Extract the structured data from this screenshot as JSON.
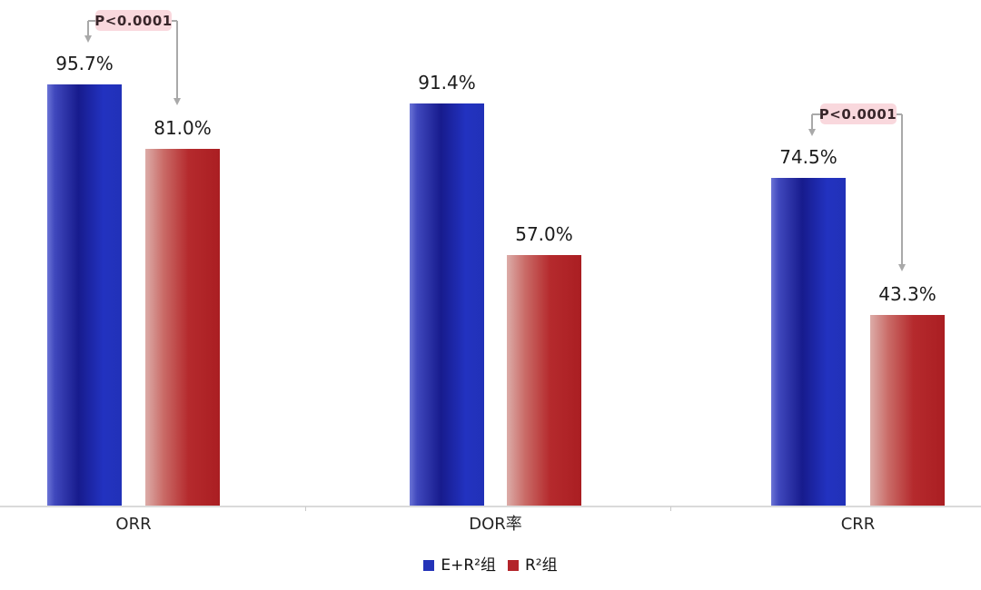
{
  "chart_data": {
    "type": "bar",
    "categories": [
      "ORR",
      "DOR率",
      "CRR"
    ],
    "series": [
      {
        "name": "E+R²组",
        "key": "e-plus-r2-group",
        "color_main": "#1f2db0",
        "color_light_edge": "#6b74d6",
        "values": [
          95.7,
          91.4,
          74.5
        ]
      },
      {
        "name": "R²组",
        "key": "r2-group",
        "color_main": "#b02226",
        "color_light_edge": "#dcaca8",
        "values": [
          81.0,
          57.0,
          43.3
        ]
      }
    ],
    "value_label_format": "percent_one_decimal",
    "value_labels": [
      [
        "95.7%",
        "91.4%",
        "74.5%"
      ],
      [
        "81.0%",
        "57.0%",
        "43.3%"
      ]
    ],
    "annotations": [
      {
        "category_index": 0,
        "category": "ORR",
        "label": "P<0.0001"
      },
      {
        "category_index": 2,
        "category": "CRR",
        "label": "P<0.0001"
      }
    ],
    "title": "",
    "xlabel": "",
    "ylabel": "",
    "ylim": [
      0,
      100
    ],
    "grid": false,
    "y_axis_visible": false,
    "legend_position": "bottom"
  },
  "legend": {
    "items": [
      {
        "label": "E+R²组",
        "color": "#2433b8"
      },
      {
        "label": "R²组",
        "color": "#b3242a"
      }
    ]
  },
  "annotation_style": {
    "box_bg": "#f9d8dd",
    "box_text_color": "#38262a",
    "line_color": "#a9a9a9"
  },
  "axis_style": {
    "line_color": "#dadada",
    "tick_color": "#c9c9c9"
  }
}
